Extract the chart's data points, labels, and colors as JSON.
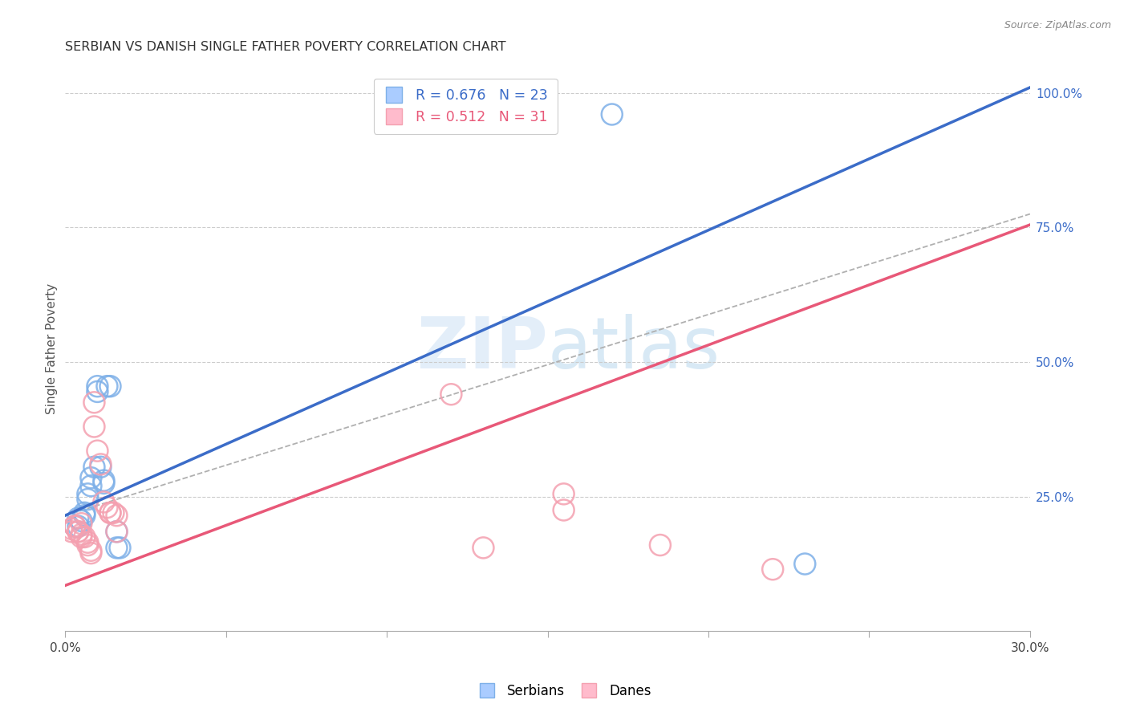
{
  "title": "SERBIAN VS DANISH SINGLE FATHER POVERTY CORRELATION CHART",
  "source": "Source: ZipAtlas.com",
  "ylabel": "Single Father Poverty",
  "legend_blue_r": "R = 0.676",
  "legend_blue_n": "N = 23",
  "legend_pink_r": "R = 0.512",
  "legend_pink_n": "N = 31",
  "legend_blue_label": "Serbians",
  "legend_pink_label": "Danes",
  "blue_color": "#7EB0E8",
  "pink_color": "#F4A0B0",
  "blue_line_color": "#3B6CC8",
  "pink_line_color": "#E85878",
  "watermark": "ZIPatlas",
  "blue_points": [
    [
      0.003,
      0.195
    ],
    [
      0.004,
      0.195
    ],
    [
      0.004,
      0.21
    ],
    [
      0.005,
      0.205
    ],
    [
      0.006,
      0.22
    ],
    [
      0.006,
      0.215
    ],
    [
      0.007,
      0.255
    ],
    [
      0.007,
      0.245
    ],
    [
      0.008,
      0.285
    ],
    [
      0.008,
      0.27
    ],
    [
      0.009,
      0.305
    ],
    [
      0.01,
      0.455
    ],
    [
      0.01,
      0.445
    ],
    [
      0.011,
      0.305
    ],
    [
      0.012,
      0.28
    ],
    [
      0.012,
      0.275
    ],
    [
      0.013,
      0.455
    ],
    [
      0.014,
      0.455
    ],
    [
      0.016,
      0.155
    ],
    [
      0.016,
      0.185
    ],
    [
      0.017,
      0.155
    ],
    [
      0.17,
      0.96
    ],
    [
      0.23,
      0.125
    ]
  ],
  "pink_points": [
    [
      0.002,
      0.185
    ],
    [
      0.002,
      0.19
    ],
    [
      0.003,
      0.195
    ],
    [
      0.003,
      0.195
    ],
    [
      0.004,
      0.185
    ],
    [
      0.004,
      0.185
    ],
    [
      0.005,
      0.18
    ],
    [
      0.005,
      0.175
    ],
    [
      0.005,
      0.2
    ],
    [
      0.006,
      0.175
    ],
    [
      0.007,
      0.165
    ],
    [
      0.007,
      0.16
    ],
    [
      0.008,
      0.15
    ],
    [
      0.008,
      0.145
    ],
    [
      0.009,
      0.425
    ],
    [
      0.009,
      0.38
    ],
    [
      0.01,
      0.335
    ],
    [
      0.011,
      0.31
    ],
    [
      0.012,
      0.24
    ],
    [
      0.013,
      0.23
    ],
    [
      0.014,
      0.22
    ],
    [
      0.014,
      0.22
    ],
    [
      0.015,
      0.22
    ],
    [
      0.016,
      0.215
    ],
    [
      0.016,
      0.185
    ],
    [
      0.12,
      0.44
    ],
    [
      0.13,
      0.155
    ],
    [
      0.155,
      0.225
    ],
    [
      0.155,
      0.255
    ],
    [
      0.185,
      0.16
    ],
    [
      0.22,
      0.115
    ]
  ],
  "blue_line": [
    [
      0.0,
      0.215
    ],
    [
      0.3,
      1.01
    ]
  ],
  "pink_line": [
    [
      0.0,
      0.085
    ],
    [
      0.3,
      0.755
    ]
  ],
  "diag_line": [
    [
      0.0,
      0.215
    ],
    [
      0.3,
      0.775
    ]
  ],
  "xlim": [
    0.0,
    0.3
  ],
  "ylim": [
    0.0,
    1.05
  ],
  "xtick_positions": [
    0.0,
    0.05,
    0.1,
    0.15,
    0.2,
    0.25,
    0.3
  ],
  "right_yticks": [
    0.0,
    0.25,
    0.5,
    0.75,
    1.0
  ],
  "right_yticklabels": [
    "",
    "25.0%",
    "50.0%",
    "75.0%",
    "100.0%"
  ],
  "background_color": "#ffffff",
  "grid_color": "#cccccc"
}
